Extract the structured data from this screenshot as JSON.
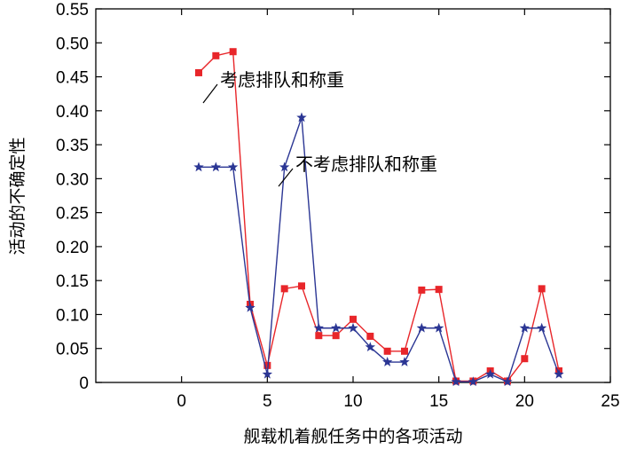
{
  "chart_data": {
    "type": "line",
    "xlabel": "舰载机着舰任务中的各项活动",
    "ylabel": "活动的不确定性",
    "xlim": [
      -5,
      25
    ],
    "ylim": [
      0,
      0.55
    ],
    "xticks": [
      0,
      5,
      10,
      15,
      20,
      25
    ],
    "yticks": [
      0,
      0.05,
      0.1,
      0.15,
      0.2,
      0.25,
      0.3,
      0.35,
      0.4,
      0.45,
      0.5,
      0.55
    ],
    "xtick_labels": [
      "0",
      "5",
      "10",
      "15",
      "20",
      "25"
    ],
    "ytick_labels": [
      "0",
      "0.05",
      "0.10",
      "0.15",
      "0.20",
      "0.25",
      "0.30",
      "0.35",
      "0.40",
      "0.45",
      "0.50",
      "0.55"
    ],
    "grid": false,
    "series": [
      {
        "name": "考虑排队和称重",
        "color": "#e8262a",
        "marker": "square",
        "x": [
          1,
          2,
          3,
          4,
          5,
          6,
          7,
          8,
          9,
          10,
          11,
          12,
          13,
          14,
          15,
          16,
          17,
          18,
          19,
          20,
          21,
          22
        ],
        "y": [
          0.456,
          0.481,
          0.487,
          0.115,
          0.025,
          0.138,
          0.142,
          0.069,
          0.069,
          0.093,
          0.068,
          0.046,
          0.046,
          0.136,
          0.137,
          0.002,
          0.002,
          0.017,
          0.002,
          0.035,
          0.138,
          0.017
        ]
      },
      {
        "name": "不考虑排队和称重",
        "color": "#2b3694",
        "marker": "star",
        "x": [
          1,
          2,
          3,
          4,
          5,
          6,
          7,
          8,
          9,
          10,
          11,
          12,
          13,
          14,
          15,
          16,
          17,
          18,
          19,
          20,
          21,
          22
        ],
        "y": [
          0.317,
          0.317,
          0.317,
          0.11,
          0.012,
          0.317,
          0.39,
          0.08,
          0.08,
          0.08,
          0.052,
          0.03,
          0.03,
          0.08,
          0.08,
          0.001,
          0.001,
          0.012,
          0.001,
          0.08,
          0.08,
          0.012
        ]
      }
    ],
    "annotations": [
      {
        "text": "考虑排队和称重",
        "series": 0
      },
      {
        "text": "不考虑排队和称重",
        "series": 1
      }
    ]
  }
}
